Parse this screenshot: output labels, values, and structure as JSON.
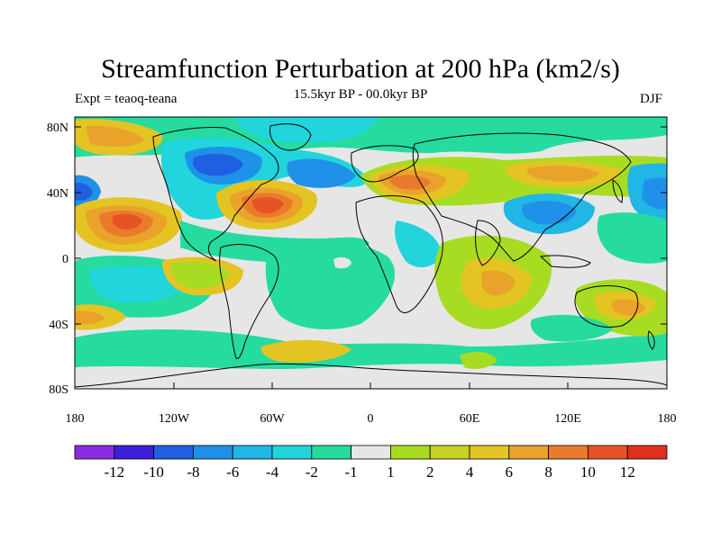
{
  "title": "Streamfunction Perturbation at 200 hPa (km2/s)",
  "subtitle": "15.5kyr BP - 00.0kyr BP",
  "left_note": "Expt = teaoq-teana",
  "right_note": "DJF",
  "axes": {
    "lat_labels": [
      "80N",
      "40N",
      "0",
      "40S",
      "80S"
    ],
    "lon_labels": [
      "180",
      "120W",
      "60W",
      "0",
      "60E",
      "120E",
      "180"
    ]
  },
  "colorbar": {
    "colors": [
      "#8a2be2",
      "#3c1fd9",
      "#1f5fe0",
      "#1f91e8",
      "#20b6e6",
      "#22d4dc",
      "#25dba0",
      "#e6e6e6",
      "#a8dc22",
      "#c8d224",
      "#e4c423",
      "#e9a32a",
      "#ea7a2c",
      "#e65326",
      "#e02e1f"
    ],
    "labels": [
      "-12",
      "-10",
      "-8",
      "-6",
      "-4",
      "-2",
      "-1",
      "1",
      "2",
      "4",
      "6",
      "8",
      "10",
      "12"
    ]
  },
  "palette": {
    "neutral": "#e6e6e6",
    "land_outline": "#000000"
  }
}
